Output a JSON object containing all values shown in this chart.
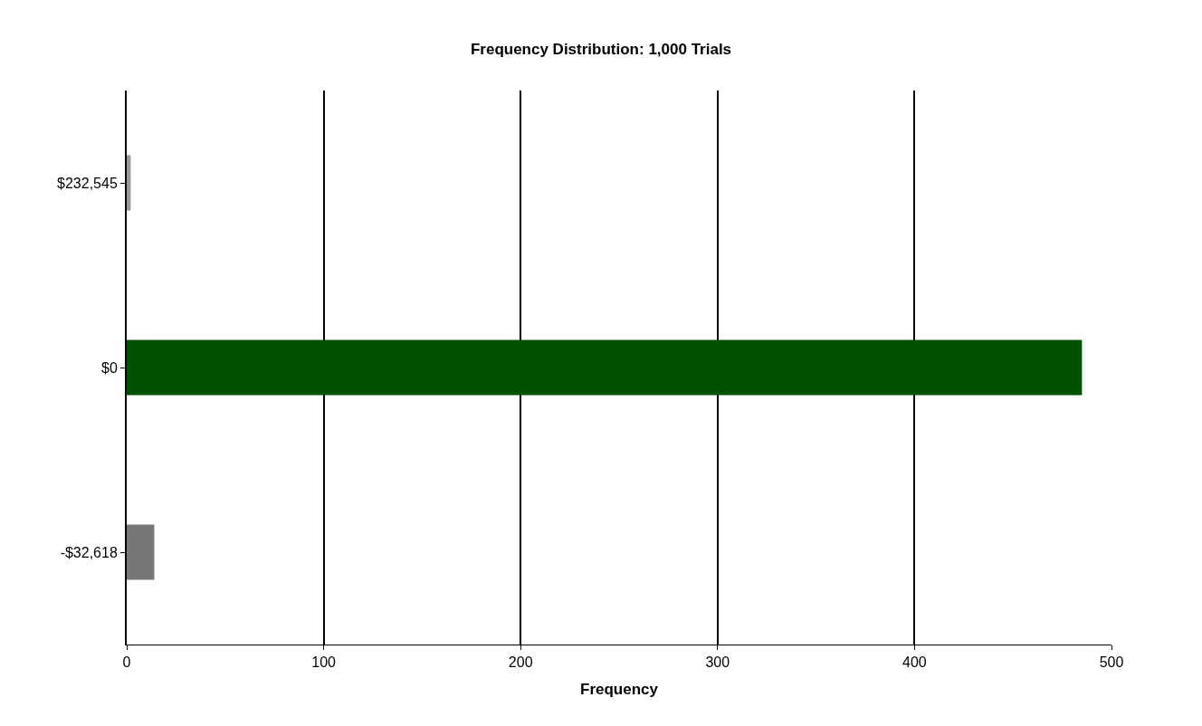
{
  "chart_data": {
    "type": "bar",
    "orientation": "horizontal",
    "title": "Frequency Distribution: 1,000 Trials",
    "xlabel": "Frequency",
    "categories": [
      "$232,545",
      "$0",
      "-$32,618"
    ],
    "values": [
      2,
      485,
      14
    ],
    "colors": [
      "#999999",
      "#005000",
      "#777777"
    ],
    "xlim": [
      0,
      500
    ],
    "xticks": [
      0,
      100,
      200,
      300,
      400,
      500
    ],
    "grid": "x"
  }
}
